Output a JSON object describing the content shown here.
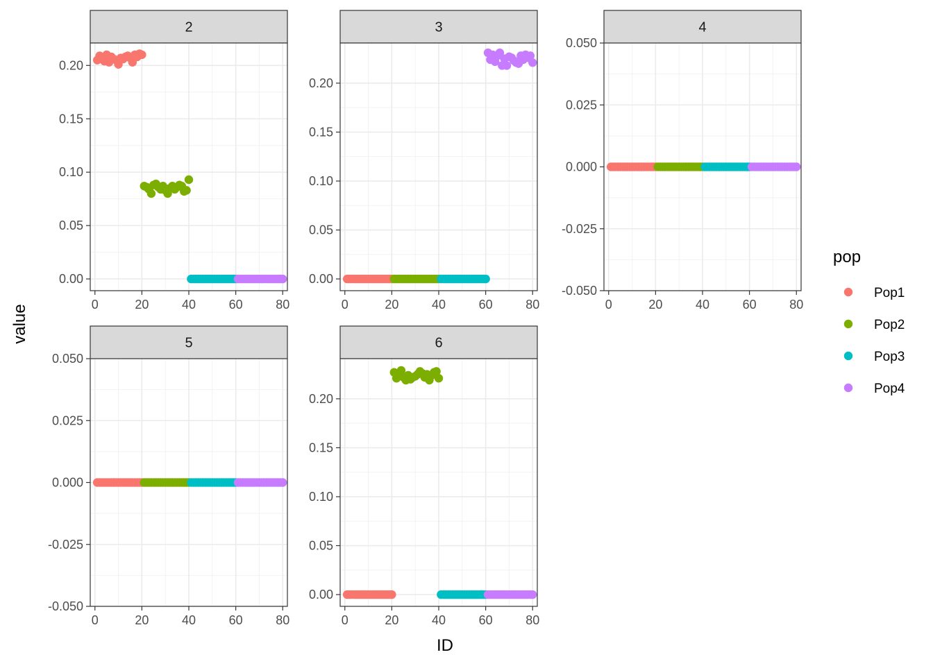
{
  "chart_data": {
    "type": "scatter",
    "xlabel": "ID",
    "ylabel": "value",
    "legend": {
      "title": "pop",
      "placement": "right",
      "entries": [
        {
          "name": "Pop1",
          "color": "#F8766D"
        },
        {
          "name": "Pop2",
          "color": "#7CAE00"
        },
        {
          "name": "Pop3",
          "color": "#00BFC4"
        },
        {
          "name": "Pop4",
          "color": "#C77CFF"
        }
      ]
    },
    "facets": [
      {
        "label": "2",
        "xlim": [
          -2,
          82
        ],
        "ylim": [
          -0.011,
          0.221
        ],
        "xticks": [
          0,
          20,
          40,
          60,
          80
        ],
        "xtick_labels": [
          "0",
          "20",
          "40",
          "60",
          "80"
        ],
        "yticks": [
          0,
          0.05,
          0.1,
          0.15,
          0.2
        ],
        "ytick_labels": [
          "0.00",
          "0.05",
          "0.10",
          "0.15",
          "0.20"
        ],
        "series": [
          {
            "name": "Pop1",
            "values": [
              0.205,
              0.209,
              0.207,
              0.204,
              0.21,
              0.203,
              0.208,
              0.206,
              0.205,
              0.201,
              0.207,
              0.206,
              0.208,
              0.209,
              0.207,
              0.203,
              0.21,
              0.208,
              0.211,
              0.21
            ]
          },
          {
            "name": "Pop2",
            "values": [
              0.087,
              0.086,
              0.084,
              0.08,
              0.088,
              0.089,
              0.086,
              0.084,
              0.087,
              0.083,
              0.08,
              0.085,
              0.087,
              0.084,
              0.086,
              0.088,
              0.087,
              0.082,
              0.083,
              0.093
            ]
          },
          {
            "name": "Pop3",
            "values": [
              0,
              0,
              0,
              0,
              0,
              0,
              0,
              0,
              0,
              0,
              0,
              0,
              0,
              0,
              0,
              0,
              0,
              0,
              0,
              0
            ]
          },
          {
            "name": "Pop4",
            "values": [
              0,
              0,
              0,
              0,
              0,
              0,
              0,
              0,
              0,
              0,
              0,
              0,
              0,
              0,
              0,
              0,
              0,
              0,
              0,
              0
            ]
          }
        ]
      },
      {
        "label": "3",
        "xlim": [
          -2,
          82
        ],
        "ylim": [
          -0.012,
          0.241
        ],
        "xticks": [
          0,
          20,
          40,
          60,
          80
        ],
        "xtick_labels": [
          "0",
          "20",
          "40",
          "60",
          "80"
        ],
        "yticks": [
          0,
          0.05,
          0.1,
          0.15,
          0.2
        ],
        "ytick_labels": [
          "0.00",
          "0.05",
          "0.10",
          "0.15",
          "0.20"
        ],
        "series": [
          {
            "name": "Pop1",
            "values": [
              0,
              0,
              0,
              0,
              0,
              0,
              0,
              0,
              0,
              0,
              0,
              0,
              0,
              0,
              0,
              0,
              0,
              0,
              0,
              0
            ]
          },
          {
            "name": "Pop2",
            "values": [
              0,
              0,
              0,
              0,
              0,
              0,
              0,
              0,
              0,
              0,
              0,
              0,
              0,
              0,
              0,
              0,
              0,
              0,
              0,
              0
            ]
          },
          {
            "name": "Pop3",
            "values": [
              0,
              0,
              0,
              0,
              0,
              0,
              0,
              0,
              0,
              0,
              0,
              0,
              0,
              0,
              0,
              0,
              0,
              0,
              0,
              0
            ]
          },
          {
            "name": "Pop4",
            "values": [
              0.231,
              0.224,
              0.229,
              0.222,
              0.228,
              0.231,
              0.218,
              0.225,
              0.218,
              0.227,
              0.226,
              0.223,
              0.221,
              0.22,
              0.228,
              0.224,
              0.229,
              0.226,
              0.228,
              0.221
            ]
          }
        ]
      },
      {
        "label": "4",
        "xlim": [
          -2,
          82
        ],
        "ylim": [
          -0.05,
          0.05
        ],
        "xticks": [
          0,
          20,
          40,
          60,
          80
        ],
        "xtick_labels": [
          "0",
          "20",
          "40",
          "60",
          "80"
        ],
        "yticks": [
          -0.05,
          -0.025,
          0,
          0.025,
          0.05
        ],
        "ytick_labels": [
          "-0.050",
          "-0.025",
          "0.000",
          "0.025",
          "0.050"
        ],
        "series": [
          {
            "name": "Pop1",
            "values": [
              0,
              0,
              0,
              0,
              0,
              0,
              0,
              0,
              0,
              0,
              0,
              0,
              0,
              0,
              0,
              0,
              0,
              0,
              0,
              0
            ]
          },
          {
            "name": "Pop2",
            "values": [
              0,
              0,
              0,
              0,
              0,
              0,
              0,
              0,
              0,
              0,
              0,
              0,
              0,
              0,
              0,
              0,
              0,
              0,
              0,
              0
            ]
          },
          {
            "name": "Pop3",
            "values": [
              0,
              0,
              0,
              0,
              0,
              0,
              0,
              0,
              0,
              0,
              0,
              0,
              0,
              0,
              0,
              0,
              0,
              0,
              0,
              0
            ]
          },
          {
            "name": "Pop4",
            "values": [
              0,
              0,
              0,
              0,
              0,
              0,
              0,
              0,
              0,
              0,
              0,
              0,
              0,
              0,
              0,
              0,
              0,
              0,
              0,
              0
            ]
          }
        ]
      },
      {
        "label": "5",
        "xlim": [
          -2,
          82
        ],
        "ylim": [
          -0.05,
          0.05
        ],
        "xticks": [
          0,
          20,
          40,
          60,
          80
        ],
        "xtick_labels": [
          "0",
          "20",
          "40",
          "60",
          "80"
        ],
        "yticks": [
          -0.05,
          -0.025,
          0,
          0.025,
          0.05
        ],
        "ytick_labels": [
          "-0.050",
          "-0.025",
          "0.000",
          "0.025",
          "0.050"
        ],
        "series": [
          {
            "name": "Pop1",
            "values": [
              0,
              0,
              0,
              0,
              0,
              0,
              0,
              0,
              0,
              0,
              0,
              0,
              0,
              0,
              0,
              0,
              0,
              0,
              0,
              0
            ]
          },
          {
            "name": "Pop2",
            "values": [
              0,
              0,
              0,
              0,
              0,
              0,
              0,
              0,
              0,
              0,
              0,
              0,
              0,
              0,
              0,
              0,
              0,
              0,
              0,
              0
            ]
          },
          {
            "name": "Pop3",
            "values": [
              0,
              0,
              0,
              0,
              0,
              0,
              0,
              0,
              0,
              0,
              0,
              0,
              0,
              0,
              0,
              0,
              0,
              0,
              0,
              0
            ]
          },
          {
            "name": "Pop4",
            "values": [
              0,
              0,
              0,
              0,
              0,
              0,
              0,
              0,
              0,
              0,
              0,
              0,
              0,
              0,
              0,
              0,
              0,
              0,
              0,
              0
            ]
          }
        ]
      },
      {
        "label": "6",
        "xlim": [
          -2,
          82
        ],
        "ylim": [
          -0.012,
          0.241
        ],
        "xticks": [
          0,
          20,
          40,
          60,
          80
        ],
        "xtick_labels": [
          "0",
          "20",
          "40",
          "60",
          "80"
        ],
        "yticks": [
          0,
          0.05,
          0.1,
          0.15,
          0.2
        ],
        "ytick_labels": [
          "0.00",
          "0.05",
          "0.10",
          "0.15",
          "0.20"
        ],
        "series": [
          {
            "name": "Pop1",
            "values": [
              0,
              0,
              0,
              0,
              0,
              0,
              0,
              0,
              0,
              0,
              0,
              0,
              0,
              0,
              0,
              0,
              0,
              0,
              0,
              0
            ]
          },
          {
            "name": "Pop2",
            "values": [
              0.227,
              0.221,
              0.226,
              0.229,
              0.222,
              0.219,
              0.224,
              0.22,
              0.222,
              0.223,
              0.225,
              0.228,
              0.226,
              0.222,
              0.225,
              0.219,
              0.224,
              0.227,
              0.228,
              0.221
            ]
          },
          {
            "name": "Pop3",
            "values": [
              0,
              0,
              0,
              0,
              0,
              0,
              0,
              0,
              0,
              0,
              0,
              0,
              0,
              0,
              0,
              0,
              0,
              0,
              0,
              0
            ]
          },
          {
            "name": "Pop4",
            "values": [
              0,
              0,
              0,
              0,
              0,
              0,
              0,
              0,
              0,
              0,
              0,
              0,
              0,
              0,
              0,
              0,
              0,
              0,
              0,
              0
            ]
          }
        ]
      }
    ]
  }
}
